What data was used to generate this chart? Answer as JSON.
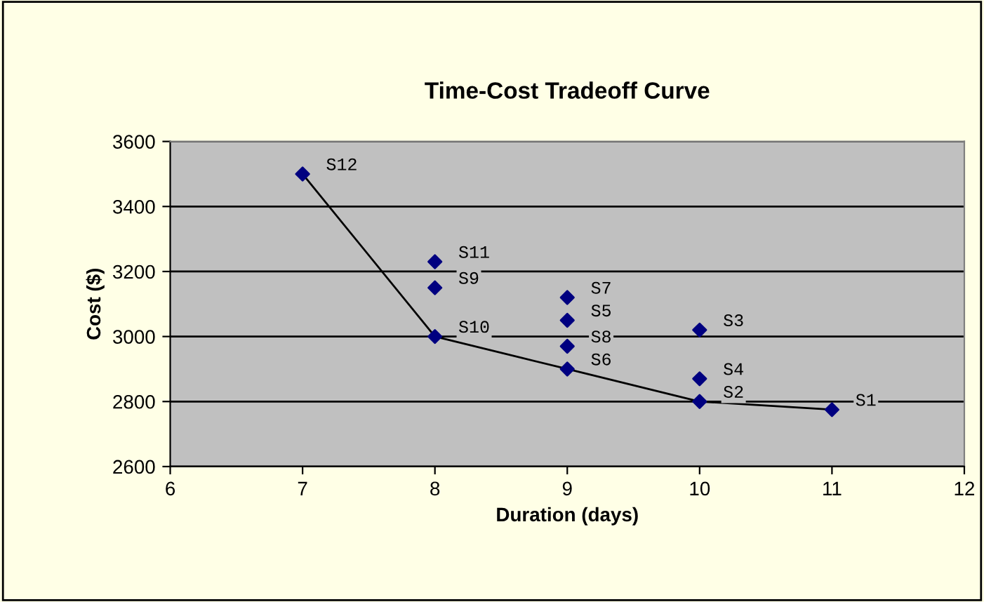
{
  "chart_data": {
    "type": "scatter",
    "title": "Time-Cost Tradeoff Curve",
    "xlabel": "Duration (days)",
    "ylabel": "Cost ($)",
    "series": [
      {
        "color": "#000080",
        "marker": "diamond",
        "x": [
          11,
          10,
          10,
          10,
          9,
          9,
          9,
          9,
          8,
          8,
          8,
          7
        ],
        "values": [
          2775,
          2800,
          3020,
          2870,
          3050,
          2900,
          3120,
          2970,
          3150,
          3000,
          3230,
          3500
        ]
      },
      {
        "type": "line",
        "color": "#000000",
        "marker": "none",
        "line_style": "solid",
        "x": [
          7,
          8,
          9,
          10,
          11
        ],
        "values": [
          3500,
          3000,
          2900,
          2800,
          2775
        ]
      }
    ],
    "annotations": [
      {
        "text": "S1",
        "x": 11,
        "y": 2775
      },
      {
        "text": "S2",
        "x": 10,
        "y": 2800
      },
      {
        "text": "S3",
        "x": 10,
        "y": 3020
      },
      {
        "text": "S4",
        "x": 10,
        "y": 2870
      },
      {
        "text": "S5",
        "x": 9,
        "y": 3050
      },
      {
        "text": "S6",
        "x": 9,
        "y": 2900
      },
      {
        "text": "S7",
        "x": 9,
        "y": 3120
      },
      {
        "text": "S8",
        "x": 9,
        "y": 2970
      },
      {
        "text": "S9",
        "x": 8,
        "y": 3150
      },
      {
        "text": "S10",
        "x": 8,
        "y": 3000
      },
      {
        "text": "S11",
        "x": 8,
        "y": 3230
      },
      {
        "text": "S12",
        "x": 7,
        "y": 3500
      }
    ],
    "xlim": [
      6,
      12
    ],
    "xticks": [
      6,
      7,
      8,
      9,
      10,
      11,
      12
    ],
    "ylim": [
      2600,
      3600
    ],
    "yticks": [
      2600,
      2800,
      3000,
      3200,
      3400,
      3600
    ],
    "grid": "y",
    "legend": false
  }
}
